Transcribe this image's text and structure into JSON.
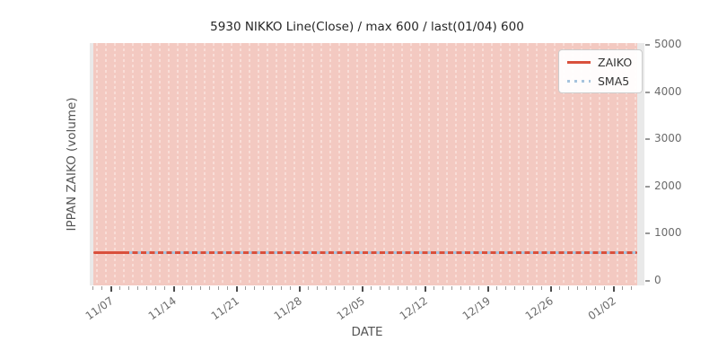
{
  "title": "5930 NIKKO Line(Close) / max 600 / last(01/04) 600",
  "axes": {
    "x_label": "DATE",
    "y_label": "IPPAN ZAIKO (volume)",
    "y_ticks": [
      0,
      1000,
      2000,
      3000,
      4000,
      5000
    ],
    "x_major_tick_labels": [
      "11/07",
      "11/14",
      "11/21",
      "11/28",
      "12/05",
      "12/12",
      "12/19",
      "12/26",
      "01/02"
    ],
    "x_major_tick_indices": [
      2,
      9,
      16,
      23,
      30,
      37,
      44,
      51,
      58
    ],
    "x_minor_tick_count": 61
  },
  "legend": {
    "items": [
      {
        "label": "ZAIKO",
        "style": "solid",
        "color": "#d9503c"
      },
      {
        "label": "SMA5",
        "style": "dotted",
        "color": "#a6c4de"
      }
    ]
  },
  "colors": {
    "plot_bg": "#e9e9e9",
    "band_fill": "#f3c9c1",
    "band_gap_dash": "#f9ddd7",
    "zaiko_line": "#d9503c",
    "sma5_line": "#a6c4de",
    "tick_label": "#6b6b6b",
    "axis_label": "#555555",
    "title": "#262626",
    "legend_border": "#cccccc"
  },
  "chart_data": {
    "type": "line",
    "title": "5930 NIKKO Line(Close) / max 600 / last(01/04) 600",
    "xlabel": "DATE",
    "ylabel": "IPPAN ZAIKO (volume)",
    "ylim": [
      0,
      5000
    ],
    "x_start": "11/05",
    "x_end": "01/04",
    "x_tick_labels": [
      "11/07",
      "11/14",
      "11/21",
      "11/28",
      "12/05",
      "12/12",
      "12/19",
      "12/26",
      "01/02"
    ],
    "grid": "vertical-daily-dashed",
    "legend_position": "upper right",
    "series": [
      {
        "name": "ZAIKO",
        "style": "solid",
        "color": "#d9503c",
        "constant_value": 600,
        "points": 61
      },
      {
        "name": "SMA5",
        "style": "dotted",
        "color": "#a6c4de",
        "constant_value": 600,
        "points": 57,
        "starts_at_point": 5
      }
    ],
    "background_band": {
      "color": "#f3c9c1",
      "description": "full-height shaded band behind series spanning all dates"
    },
    "max": 600,
    "last": {
      "date": "01/04",
      "value": 600
    }
  }
}
